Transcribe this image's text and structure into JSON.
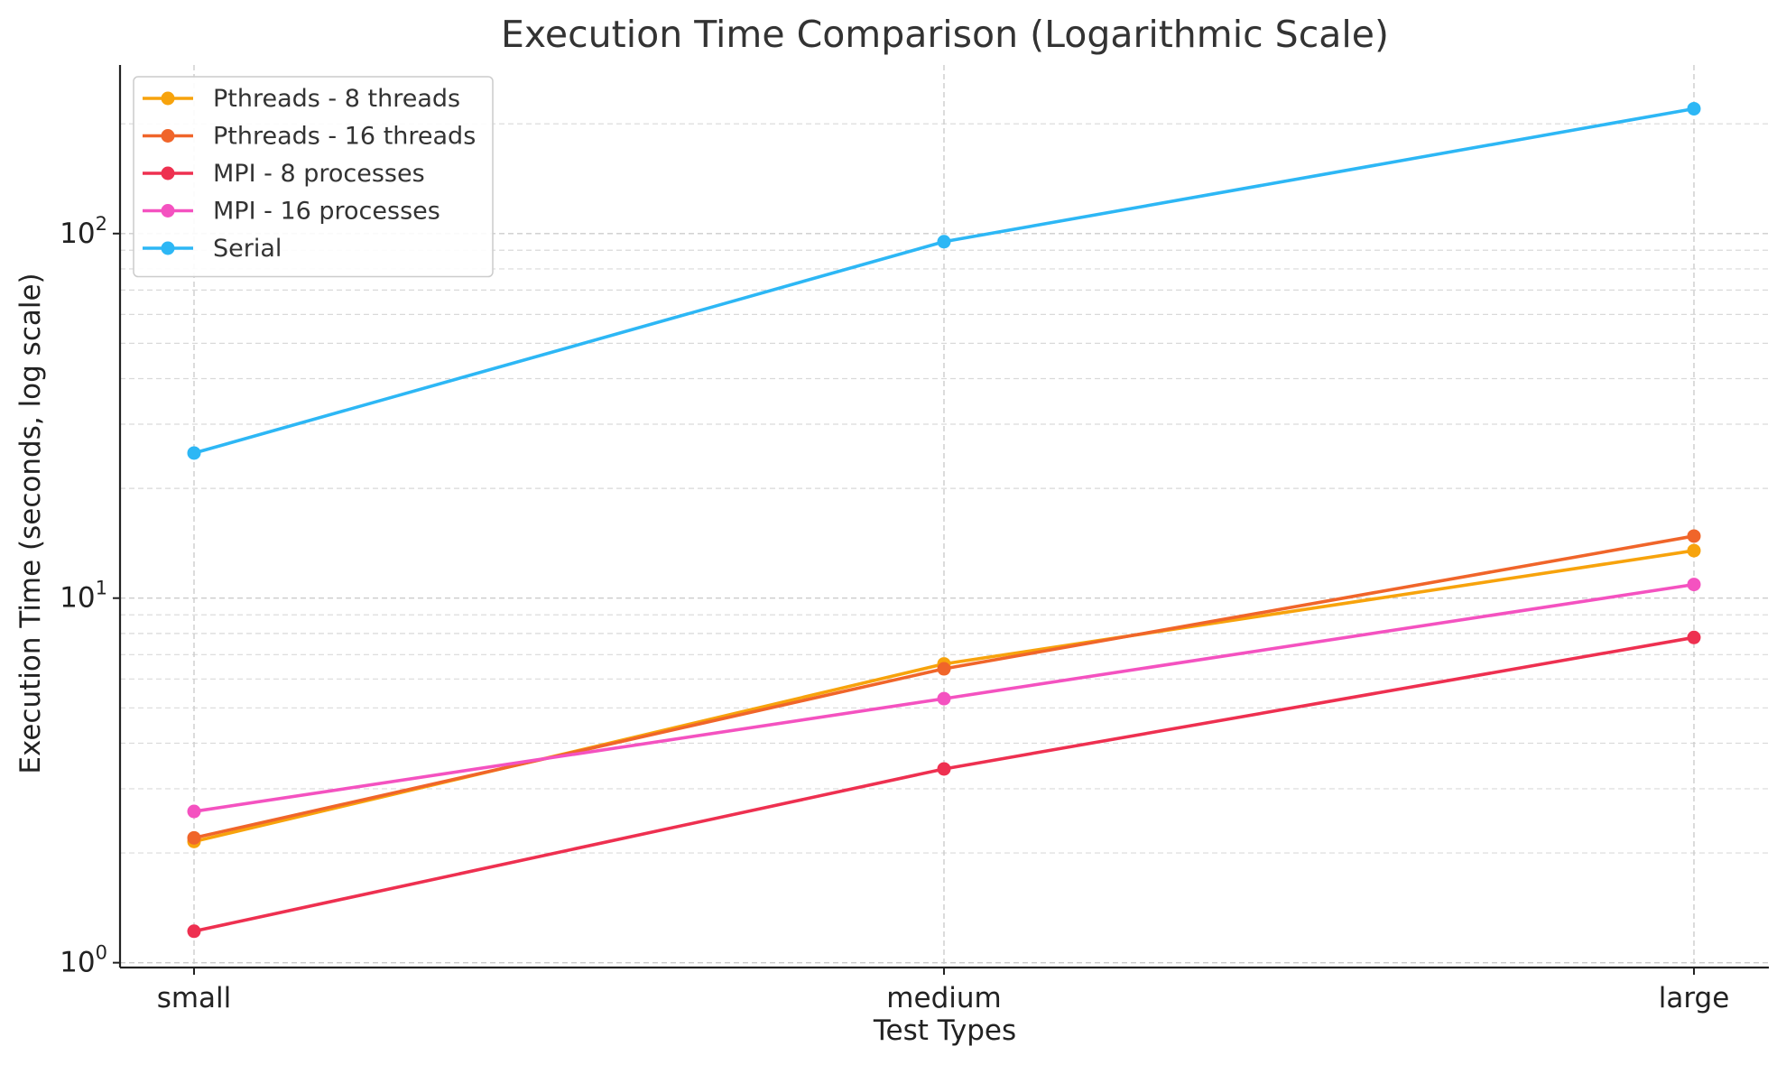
{
  "chart_data": {
    "type": "line",
    "title": "Execution Time Comparison (Logarithmic Scale)",
    "xlabel": "Test Types",
    "ylabel": "Execution Time (seconds, log scale)",
    "y_scale": "log",
    "ylim": [
      0.97,
      290
    ],
    "y_ticks": [
      {
        "value": 1,
        "base": "10",
        "exp": "0"
      },
      {
        "value": 10,
        "base": "10",
        "exp": "1"
      },
      {
        "value": 100,
        "base": "10",
        "exp": "2"
      }
    ],
    "categories": [
      "small",
      "medium",
      "large"
    ],
    "grid": true,
    "legend_position": "top-left",
    "series": [
      {
        "name": "Pthreads - 8 threads",
        "color": "#F7A30C",
        "values": [
          2.15,
          6.6,
          13.5
        ]
      },
      {
        "name": "Pthreads - 16 threads",
        "color": "#F0652A",
        "values": [
          2.2,
          6.4,
          14.8
        ]
      },
      {
        "name": "MPI - 8 processes",
        "color": "#EE3050",
        "values": [
          1.22,
          3.4,
          7.8
        ]
      },
      {
        "name": "MPI - 16 processes",
        "color": "#F452C0",
        "values": [
          2.6,
          5.3,
          10.9
        ]
      },
      {
        "name": "Serial",
        "color": "#2DB7F5",
        "values": [
          25.0,
          95.0,
          220.0
        ]
      }
    ]
  }
}
